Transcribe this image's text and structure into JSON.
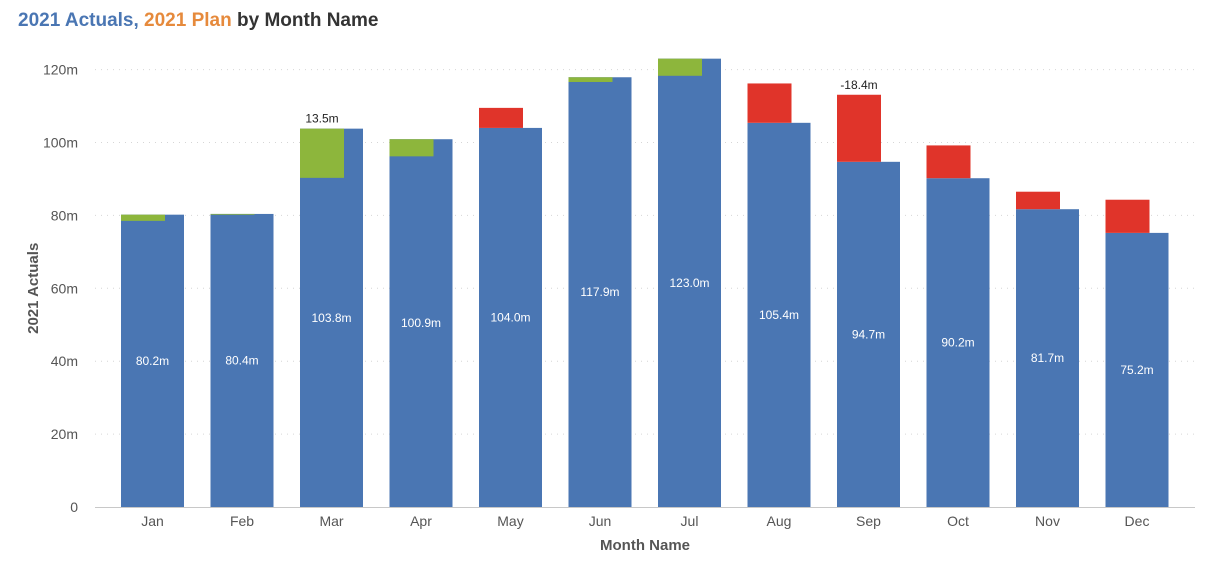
{
  "title": {
    "actual_part": "2021 Actuals",
    "sep": ", ",
    "plan_part": "2021 Plan",
    "suffix": " by Month Name"
  },
  "colors": {
    "actual": "#4a76b3",
    "plan_title": "#e68a3c",
    "positive_variance": "#8db63c",
    "negative_variance": "#e0342a"
  },
  "chart_data": {
    "type": "bar",
    "xlabel": "Month Name",
    "ylabel": "2021 Actuals",
    "ylim": [
      0,
      123
    ],
    "yticks": [
      0,
      20,
      40,
      60,
      80,
      100,
      120
    ],
    "ytick_labels": [
      "0",
      "20m",
      "40m",
      "60m",
      "80m",
      "100m",
      "120m"
    ],
    "grid": true,
    "categories": [
      "Jan",
      "Feb",
      "Mar",
      "Apr",
      "May",
      "Jun",
      "Jul",
      "Aug",
      "Sep",
      "Oct",
      "Nov",
      "Dec"
    ],
    "series": [
      {
        "name": "2021 Actuals",
        "values": [
          80.2,
          80.4,
          103.8,
          100.9,
          104.0,
          117.9,
          123.0,
          105.4,
          94.7,
          90.2,
          81.7,
          75.2
        ],
        "labels": [
          "80.2m",
          "80.4m",
          "103.8m",
          "100.9m",
          "104.0m",
          "117.9m",
          "123.0m",
          "105.4m",
          "94.7m",
          "90.2m",
          "81.7m",
          "75.2m"
        ]
      },
      {
        "name": "2021 Plan",
        "values": [
          78.5,
          80.2,
          90.3,
          96.2,
          109.5,
          116.6,
          118.3,
          116.2,
          113.1,
          99.2,
          86.5,
          84.3
        ]
      }
    ],
    "variance_labels": [
      {
        "category": "Mar",
        "text": "13.5m"
      },
      {
        "category": "Sep",
        "text": "-18.4m"
      }
    ]
  }
}
